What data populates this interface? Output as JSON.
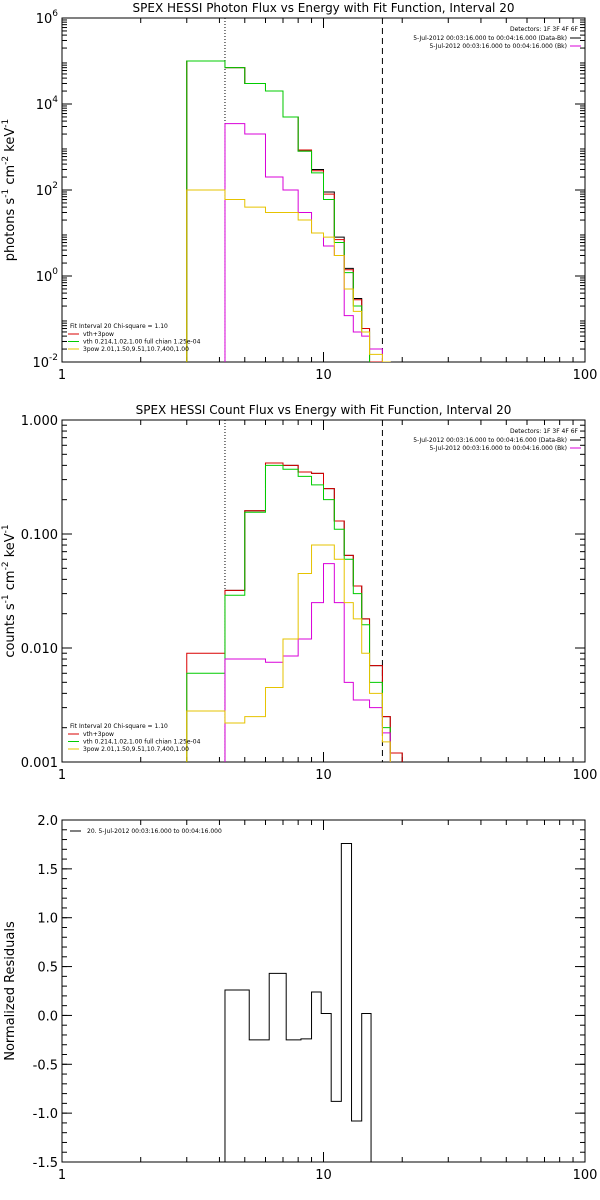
{
  "chart_data": [
    {
      "type": "line",
      "title": "SPEX HESSI Photon Flux vs Energy with Fit Function, Interval 20",
      "ylabel": "photons s^-1 cm^-2 keV^-1",
      "ylabel_parts": {
        "base": "photons s",
        "e1": "-1",
        "mid": " cm",
        "e2": "-2",
        "tail": " keV",
        "e3": "-1"
      },
      "xscale": "log",
      "yscale": "log",
      "xlim": [
        1,
        100
      ],
      "ylim": [
        0.01,
        1000000
      ],
      "x_ticks": [
        "1",
        "10",
        "100"
      ],
      "y_ticks": [
        {
          "v": 0.01,
          "base": "10",
          "exp": "-2"
        },
        {
          "v": 1,
          "base": "10",
          "exp": "0"
        },
        {
          "v": 100,
          "base": "10",
          "exp": "2"
        },
        {
          "v": 10000,
          "base": "10",
          "exp": "4"
        },
        {
          "v": 1000000,
          "base": "10",
          "exp": "6"
        }
      ],
      "vlines": [
        {
          "x": 4.2,
          "style": "dotted"
        },
        {
          "x": 16.8,
          "style": "dashed"
        }
      ],
      "detectors_label": "Detectors: 1F 3F 4F 6F",
      "info_lines": [
        {
          "text": "5-Jul-2012 00:03:16.000 to 00:04:16.000 (Data-Bk)",
          "color": "#000000"
        },
        {
          "text": "5-Jul-2012 00:03:16.000 to 00:04:16.000 (Bk)",
          "color": "#d900d9"
        }
      ],
      "fit_header": "Fit Interval 20   Chi-square = 1.10",
      "fit_lines": [
        {
          "text": "vth+3pow",
          "color": "#d90000"
        },
        {
          "text": "vth 0.214,1.02,1.00  full chian 1.25e-04",
          "color": "#00cc00"
        },
        {
          "text": "3pow 2.01,1.50,9.51,10.7,400,1.00",
          "color": "#e6c300"
        }
      ],
      "edges": [
        3,
        4.2,
        5,
        6,
        7,
        8,
        9,
        10,
        11,
        12,
        13,
        14,
        15,
        16.8,
        18,
        20
      ],
      "series": [
        {
          "color": "#000000",
          "values": [
            100000,
            70000,
            30000,
            20000,
            5000,
            800,
            300,
            90,
            8,
            1.5,
            0.3,
            0.06,
            0.01,
            null,
            null
          ]
        },
        {
          "color": "#d90000",
          "values": [
            100000,
            70000,
            30000,
            20000,
            5000,
            850,
            280,
            80,
            7,
            1.4,
            0.28,
            0.06,
            0.01,
            0.008,
            0.007
          ]
        },
        {
          "color": "#00cc00",
          "values": [
            100000,
            70000,
            30000,
            20000,
            5000,
            800,
            250,
            60,
            6,
            1.2,
            0.2,
            0.05,
            0.009,
            null,
            null
          ]
        },
        {
          "color": "#d900d9",
          "values": [
            null,
            3500,
            2000,
            200,
            100,
            30,
            10,
            5,
            3,
            0.12,
            0.05,
            0.04,
            0.02,
            null,
            null
          ]
        },
        {
          "color": "#e6c300",
          "values": [
            100,
            60,
            40,
            30,
            30,
            20,
            10,
            8,
            3,
            0.5,
            0.15,
            0.05,
            0.015,
            0.01,
            0.008
          ]
        }
      ]
    },
    {
      "type": "line",
      "title": "SPEX HESSI Count Flux vs Energy with Fit Function, Interval 20",
      "ylabel": "counts s^-1 cm^-2 keV^-1",
      "ylabel_parts": {
        "base": "counts s",
        "e1": "-1",
        "mid": " cm",
        "e2": "-2",
        "tail": " keV",
        "e3": "-1"
      },
      "xscale": "log",
      "yscale": "log",
      "xlim": [
        1,
        100
      ],
      "ylim": [
        0.001,
        1
      ],
      "x_ticks": [
        "1",
        "10",
        "100"
      ],
      "y_ticks": [
        {
          "v": 0.001,
          "label": "0.001"
        },
        {
          "v": 0.01,
          "label": "0.010"
        },
        {
          "v": 0.1,
          "label": "0.100"
        },
        {
          "v": 1,
          "label": "1.000"
        }
      ],
      "vlines": [
        {
          "x": 4.2,
          "style": "dotted"
        },
        {
          "x": 16.8,
          "style": "dashed"
        }
      ],
      "detectors_label": "Detectors: 1F 3F 4F 6F",
      "info_lines": [
        {
          "text": "5-Jul-2012 00:03:16.000 to 00:04:16.000 (Data-Bk)",
          "color": "#000000"
        },
        {
          "text": "5-Jul-2012 00:03:16.000 to 00:04:16.000 (Bk)",
          "color": "#d900d9"
        }
      ],
      "fit_header": "Fit Interval 20   Chi-square = 1.10",
      "fit_lines": [
        {
          "text": "vth+3pow",
          "color": "#d90000"
        },
        {
          "text": "vth 0.214,1.02,1.00  full chian 1.25e-04",
          "color": "#00cc00"
        },
        {
          "text": "3pow 2.01,1.50,9.51,10.7,400,1.00",
          "color": "#e6c300"
        }
      ],
      "edges": [
        3,
        4.2,
        5,
        6,
        7,
        8,
        9,
        10,
        11,
        12,
        13,
        14,
        15,
        16.8,
        18,
        20
      ],
      "series": [
        {
          "color": "#000000",
          "values": [
            null,
            0.032,
            0.16,
            0.42,
            0.4,
            0.35,
            0.34,
            0.25,
            0.13,
            0.065,
            0.035,
            0.018,
            0.007,
            0.0025,
            0.0012
          ]
        },
        {
          "color": "#d90000",
          "values": [
            0.009,
            0.032,
            0.16,
            0.42,
            0.4,
            0.35,
            0.34,
            0.25,
            0.13,
            0.065,
            0.035,
            0.018,
            0.007,
            0.0025,
            0.0012
          ]
        },
        {
          "color": "#00cc00",
          "values": [
            0.006,
            0.029,
            0.155,
            0.4,
            0.37,
            0.32,
            0.27,
            0.2,
            0.11,
            0.06,
            0.03,
            0.016,
            0.005,
            0.002,
            null
          ]
        },
        {
          "color": "#d900d9",
          "values": [
            null,
            0.008,
            0.008,
            0.0075,
            0.0085,
            0.012,
            0.025,
            0.055,
            0.025,
            0.005,
            0.0035,
            0.0035,
            0.003,
            0.0018,
            null
          ]
        },
        {
          "color": "#e6c300",
          "values": [
            0.0028,
            0.0022,
            0.0025,
            0.0045,
            0.012,
            0.045,
            0.08,
            0.08,
            0.06,
            0.025,
            0.018,
            0.009,
            0.004,
            0.0015,
            null
          ]
        }
      ]
    },
    {
      "type": "line",
      "title": "",
      "ylabel": "Normalized Residuals",
      "xscale": "log",
      "yscale": "linear",
      "xlim": [
        1,
        100
      ],
      "ylim": [
        -1.5,
        2.0
      ],
      "x_ticks": [
        "1",
        "10",
        "100"
      ],
      "y_ticks": [
        {
          "v": 2.0,
          "label": "2.0"
        },
        {
          "v": 1.5,
          "label": "1.5"
        },
        {
          "v": 1.0,
          "label": "1.0"
        },
        {
          "v": 0.5,
          "label": "0.5"
        },
        {
          "v": 0.0,
          "label": "0.0"
        },
        {
          "v": -0.5,
          "label": "-0.5"
        },
        {
          "v": -1.0,
          "label": "-1.0"
        },
        {
          "v": -1.5,
          "label": "-1.5"
        }
      ],
      "legend": "20.  5-Jul-2012 00:03:16.000 to 00:04:16.000",
      "edges": [
        4.2,
        5.2,
        6.2,
        7.2,
        8.2,
        9.0,
        9.8,
        10.7,
        11.7,
        12.8,
        14.0,
        15.2,
        16.8
      ],
      "series": [
        {
          "color": "#000000",
          "values": [
            0.26,
            -0.25,
            0.43,
            -0.25,
            -0.24,
            0.24,
            0.02,
            -0.88,
            1.76,
            -1.08,
            0.02,
            -1.5
          ]
        }
      ]
    }
  ]
}
